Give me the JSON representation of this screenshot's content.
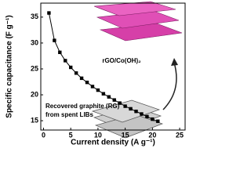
{
  "chart_data": {
    "type": "line",
    "x_label": "Current density (A g⁻¹)",
    "y_label": "Specific capacitance (F g⁻¹)",
    "annotations": [
      "rGO/Co(OH)₂",
      "Recovered graphite (RG)",
      "from spent LIBs"
    ],
    "series": [
      {
        "color": "#000000",
        "x": [
          1,
          2,
          3,
          4,
          5,
          6,
          7,
          8,
          9,
          10,
          11,
          12,
          13,
          14,
          15,
          16,
          17,
          18,
          19,
          20,
          21
        ],
        "values": [
          35.8,
          30.5,
          28.2,
          26.6,
          25.3,
          24.2,
          23.2,
          22.4,
          21.6,
          20.9,
          20.2,
          19.6,
          19,
          18.4,
          17.8,
          17.3,
          16.8,
          16.3,
          15.8,
          15.3,
          14.9
        ]
      }
    ],
    "xlim": [
      -0.5,
      26
    ],
    "xticks": [
      0,
      5,
      10,
      15,
      20,
      25
    ],
    "ylim": [
      13.2,
      37.7
    ],
    "yticks": [
      15,
      20,
      25,
      30,
      35
    ],
    "markers": "square"
  }
}
